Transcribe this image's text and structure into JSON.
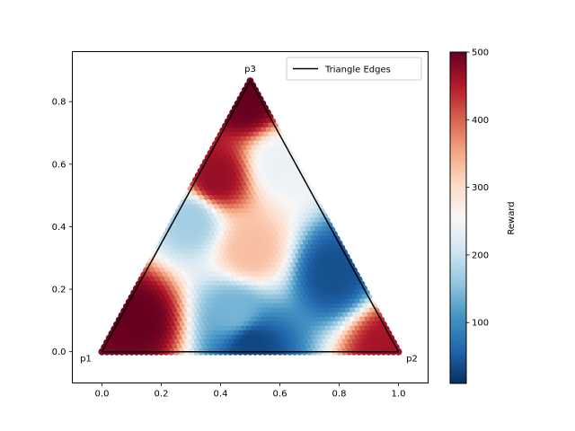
{
  "chart_data": {
    "type": "scatter",
    "title": "",
    "xlabel": "",
    "ylabel": "",
    "xlim": [
      -0.1,
      1.1
    ],
    "ylim": [
      -0.1,
      0.96
    ],
    "x_ticks": [
      0.0,
      0.2,
      0.4,
      0.6,
      0.8,
      1.0
    ],
    "x_tick_labels": [
      "0.0",
      "0.2",
      "0.4",
      "0.6",
      "0.8",
      "1.0"
    ],
    "y_ticks": [
      0.0,
      0.2,
      0.4,
      0.6,
      0.8
    ],
    "y_tick_labels": [
      "0.0",
      "0.2",
      "0.4",
      "0.6",
      "0.8"
    ],
    "grid": false,
    "legend": {
      "entries": [
        "Triangle Edges"
      ],
      "placement": "upper right"
    },
    "triangle": {
      "label": "Triangle Edges",
      "color": "#000000",
      "vertices": [
        {
          "name": "p1",
          "x": 0.0,
          "y": 0.0
        },
        {
          "name": "p2",
          "x": 1.0,
          "y": 0.0
        },
        {
          "name": "p3",
          "x": 0.5,
          "y": 0.866
        }
      ]
    },
    "colormap": "RdBu_r",
    "colorbar": {
      "label": "Reward",
      "min": 10,
      "max": 500,
      "ticks": [
        100,
        200,
        300,
        400,
        500
      ],
      "tick_labels": [
        "100",
        "200",
        "300",
        "400",
        "500"
      ]
    },
    "reward_regions": [
      {
        "region": "p3 apex",
        "x": 0.49,
        "y": 0.8,
        "reward": 500
      },
      {
        "region": "upper-left band",
        "x": 0.38,
        "y": 0.55,
        "reward": 470
      },
      {
        "region": "upper-right light band",
        "x": 0.6,
        "y": 0.6,
        "reward": 240
      },
      {
        "region": "mid-left blue",
        "x": 0.3,
        "y": 0.42,
        "reward": 170
      },
      {
        "region": "mid wave",
        "x": 0.5,
        "y": 0.32,
        "reward": 330
      },
      {
        "region": "lower-left dark red",
        "x": 0.12,
        "y": 0.1,
        "reward": 500
      },
      {
        "region": "right lobe dark blue",
        "x": 0.78,
        "y": 0.25,
        "reward": 40
      },
      {
        "region": "bottom dark blue",
        "x": 0.5,
        "y": 0.02,
        "reward": 30
      },
      {
        "region": "bottom middle",
        "x": 0.45,
        "y": 0.12,
        "reward": 140
      },
      {
        "region": "p2 corner",
        "x": 0.97,
        "y": 0.01,
        "reward": 460
      }
    ]
  },
  "colors": {
    "cmap_stops": [
      "#053061",
      "#2166ac",
      "#4393c3",
      "#92c5de",
      "#d1e5f0",
      "#f7f7f7",
      "#fddbc7",
      "#f4a582",
      "#d6604d",
      "#b2182b",
      "#67001f"
    ],
    "triangle_edge": "#000000"
  }
}
